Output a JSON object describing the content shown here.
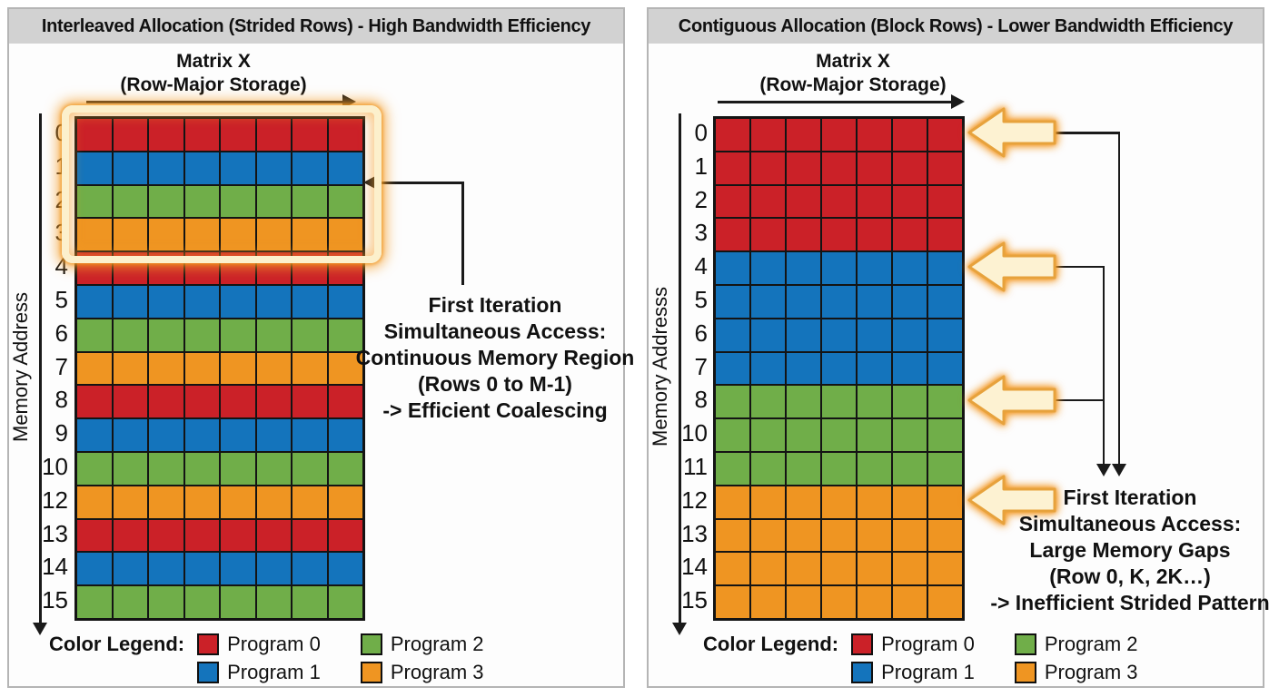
{
  "colors": {
    "program0": "#cb2128",
    "program1": "#1474bc",
    "program2": "#70ae49",
    "program3": "#ef9522",
    "highlight_cream": "#fcf0cc",
    "highlight_glow_orange": "#f59d28",
    "arrow_stroke_orange": "#e7a23c",
    "arrow_fill_cream": "#fdf2d2",
    "line_black": "#1a1a1a",
    "titlebar_gray": "#d2d2d2"
  },
  "legend": {
    "label": "Color Legend:",
    "items": [
      {
        "name": "Program 0",
        "color_key": "program0"
      },
      {
        "name": "Program 1",
        "color_key": "program1"
      },
      {
        "name": "Program 2",
        "color_key": "program2"
      },
      {
        "name": "Program 3",
        "color_key": "program3"
      }
    ]
  },
  "panels": [
    {
      "key": "interleaved",
      "title": "Interleaved Allocation (Strided Rows) - High Bandwidth Efficiency",
      "matrix_title": "Matrix X",
      "matrix_subtitle": "(Row-Major Storage)",
      "axis_label": "Memory Address",
      "columns": 8,
      "rows": [
        {
          "label": "0",
          "color_key": "program0"
        },
        {
          "label": "1",
          "color_key": "program1"
        },
        {
          "label": "2",
          "color_key": "program2"
        },
        {
          "label": "3",
          "color_key": "program3"
        },
        {
          "label": "4",
          "color_key": "program0"
        },
        {
          "label": "5",
          "color_key": "program1"
        },
        {
          "label": "6",
          "color_key": "program2"
        },
        {
          "label": "7",
          "color_key": "program3"
        },
        {
          "label": "8",
          "color_key": "program0"
        },
        {
          "label": "9",
          "color_key": "program1"
        },
        {
          "label": "10",
          "color_key": "program2"
        },
        {
          "label": "12",
          "color_key": "program3"
        },
        {
          "label": "13",
          "color_key": "program0"
        },
        {
          "label": "14",
          "color_key": "program1"
        },
        {
          "label": "15",
          "color_key": "program2"
        }
      ],
      "highlight_rows": [
        0,
        3
      ],
      "annotation_lines": [
        "First Iteration",
        "Simultaneous Access:",
        "Continuous Memory Region",
        "(Rows 0 to M-1)",
        "-> Efficient Coalescing"
      ]
    },
    {
      "key": "contiguous",
      "title": "Contiguous Allocation (Block Rows) - Lower Bandwidth Efficiency",
      "matrix_title": "Matrix X",
      "matrix_subtitle": "(Row-Major Storage)",
      "axis_label": "Memory Addresss",
      "columns": 7,
      "rows": [
        {
          "label": "0",
          "color_key": "program0"
        },
        {
          "label": "1",
          "color_key": "program0"
        },
        {
          "label": "2",
          "color_key": "program0"
        },
        {
          "label": "3",
          "color_key": "program0"
        },
        {
          "label": "4",
          "color_key": "program1"
        },
        {
          "label": "5",
          "color_key": "program1"
        },
        {
          "label": "6",
          "color_key": "program1"
        },
        {
          "label": "7",
          "color_key": "program1"
        },
        {
          "label": "8",
          "color_key": "program2"
        },
        {
          "label": "10",
          "color_key": "program2"
        },
        {
          "label": "11",
          "color_key": "program2"
        },
        {
          "label": "12",
          "color_key": "program3"
        },
        {
          "label": "13",
          "color_key": "program3"
        },
        {
          "label": "14",
          "color_key": "program3"
        },
        {
          "label": "15",
          "color_key": "program3"
        }
      ],
      "block_arrow_rows": [
        0,
        4,
        8,
        11
      ],
      "annotation_lines": [
        "First Iteration",
        "Simultaneous Access:",
        "Large Memory Gaps",
        "(Row 0, K, 2K…)",
        "-> Inefficient Strided Pattern"
      ]
    }
  ]
}
